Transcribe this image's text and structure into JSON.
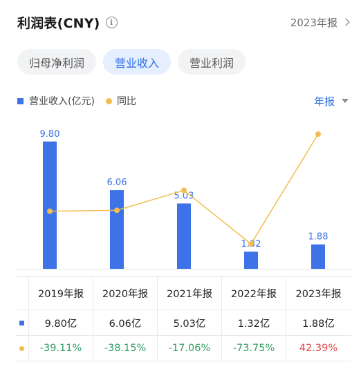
{
  "header": {
    "title": "利润表(CNY)",
    "period_label": "2023年报"
  },
  "tabs": [
    {
      "label": "归母净利润",
      "active": false
    },
    {
      "label": "营业收入",
      "active": true
    },
    {
      "label": "营业利润",
      "active": false
    }
  ],
  "legend": {
    "revenue": "营业收入(亿元)",
    "yoy": "同比",
    "period_select": "年报"
  },
  "colors": {
    "bar": "#3d73e6",
    "line": "#f2bd4e",
    "accent": "#2f6fe4",
    "positive": "#e04646",
    "negative": "#2f9e62"
  },
  "chart_data": {
    "type": "bar",
    "categories": [
      "2019年报",
      "2020年报",
      "2021年报",
      "2022年报",
      "2023年报"
    ],
    "series": [
      {
        "name": "营业收入(亿元)",
        "type": "bar",
        "values": [
          9.8,
          6.06,
          5.03,
          1.32,
          1.88
        ]
      },
      {
        "name": "同比",
        "type": "line",
        "values": [
          -39.11,
          -38.15,
          -17.06,
          -73.75,
          42.39
        ]
      }
    ],
    "bar_labels": [
      "9.80",
      "6.06",
      "5.03",
      "1.32",
      "1.88"
    ],
    "ylim": [
      0,
      10
    ],
    "line_ylim": [
      -100,
      60
    ],
    "grid": false
  },
  "table": {
    "years": [
      "2019年报",
      "2020年报",
      "2021年报",
      "2022年报",
      "2023年报"
    ],
    "revenue": [
      "9.80亿",
      "6.06亿",
      "5.03亿",
      "1.32亿",
      "1.88亿"
    ],
    "yoy": [
      "-39.11%",
      "-38.15%",
      "-17.06%",
      "-73.75%",
      "42.39%"
    ]
  }
}
